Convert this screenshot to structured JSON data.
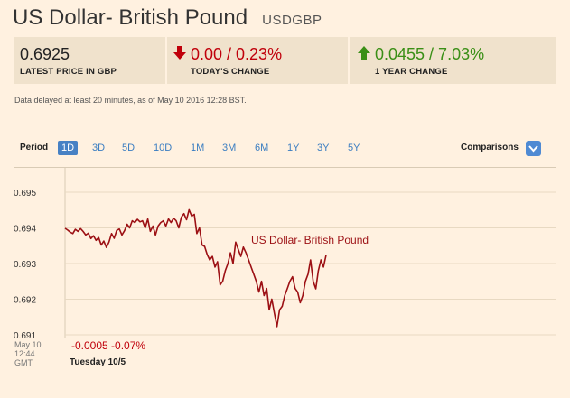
{
  "header": {
    "title": "US Dollar- British Pound",
    "symbol": "USDGBP"
  },
  "stats": {
    "price_value": "0.6925",
    "price_label": "LATEST PRICE IN GBP",
    "today_value": "0.00 / 0.23%",
    "today_label": "TODAY'S CHANGE",
    "year_value": "0.0455 / 7.03%",
    "year_label": "1 YEAR CHANGE"
  },
  "colors": {
    "down": "#c0000b",
    "up": "#3a8f16",
    "accent": "#4781c4",
    "line": "#9c1014"
  },
  "note": "Data delayed at least 20 minutes, as of May 10 2016 12:28 BST.",
  "period": {
    "label": "Period",
    "options": [
      "1D",
      "3D",
      "5D",
      "10D",
      "1M",
      "3M",
      "6M",
      "1Y",
      "3Y",
      "5Y"
    ],
    "active": "1D"
  },
  "comparisons": {
    "label": "Comparisons",
    "icon": "chevron-down-icon"
  },
  "footer": {
    "date": "May 10",
    "time": "12:44",
    "tz": "GMT",
    "change": "-0.0005 -0.07%",
    "day": "Tuesday 10/5"
  },
  "chart_data": {
    "type": "line",
    "title": "",
    "xlabel": "",
    "ylabel": "",
    "ylim": [
      0.6907,
      0.6953
    ],
    "yticks": [
      "0.695",
      "0.694",
      "0.693",
      "0.692",
      "0.691"
    ],
    "grid": true,
    "series": [
      {
        "name": "US Dollar- British Pound",
        "values": [
          0.69399,
          0.69394,
          0.69388,
          0.69384,
          0.69396,
          0.6939,
          0.69398,
          0.6939,
          0.6938,
          0.69385,
          0.6937,
          0.69378,
          0.69365,
          0.69373,
          0.69352,
          0.69363,
          0.69345,
          0.6936,
          0.69384,
          0.69371,
          0.69393,
          0.69397,
          0.6938,
          0.69392,
          0.6941,
          0.694,
          0.6942,
          0.69415,
          0.69424,
          0.69417,
          0.6942,
          0.694,
          0.69425,
          0.6939,
          0.69405,
          0.6938,
          0.69405,
          0.69415,
          0.6942,
          0.69405,
          0.69425,
          0.69415,
          0.69427,
          0.6942,
          0.694,
          0.6943,
          0.6944,
          0.69423,
          0.69451,
          0.69433,
          0.69438,
          0.69384,
          0.694,
          0.69352,
          0.69348,
          0.69325,
          0.6931,
          0.6932,
          0.6929,
          0.69305,
          0.6924,
          0.6925,
          0.6928,
          0.693,
          0.6933,
          0.693,
          0.6936,
          0.6934,
          0.6932,
          0.69346,
          0.6933,
          0.6931,
          0.6929,
          0.6927,
          0.6925,
          0.6922,
          0.6925,
          0.6921,
          0.6923,
          0.6917,
          0.692,
          0.6916,
          0.69123,
          0.6917,
          0.6918,
          0.6921,
          0.6923,
          0.6925,
          0.69263,
          0.6923,
          0.6922,
          0.6919,
          0.6921,
          0.6925,
          0.6927,
          0.6931,
          0.6925,
          0.69229,
          0.6928,
          0.6931,
          0.6929,
          0.69324
        ]
      }
    ],
    "series_label": "US Dollar- British Pound"
  }
}
